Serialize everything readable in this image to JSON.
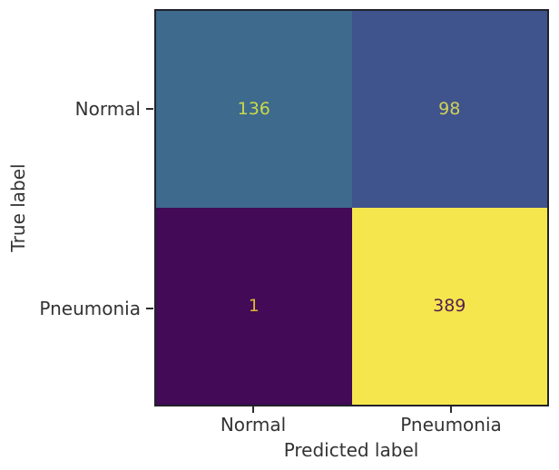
{
  "chart_data": {
    "type": "heatmap",
    "subtype": "confusion-matrix",
    "title": "",
    "xlabel": "Predicted label",
    "ylabel": "True label",
    "x_categories": [
      "Normal",
      "Pneumonia"
    ],
    "y_categories": [
      "Normal",
      "Pneumonia"
    ],
    "matrix": [
      [
        136,
        98
      ],
      [
        1,
        389
      ]
    ],
    "value_range": [
      1,
      389
    ],
    "colormap": "viridis",
    "grid": false,
    "legend": "none",
    "cell_colors": [
      [
        "#3d6a8d",
        "#3f538c"
      ],
      [
        "#420a57",
        "#f6e64d"
      ]
    ],
    "cell_text_colors": [
      [
        "#cbd84a",
        "#d0d257"
      ],
      [
        "#dcb535",
        "#572052"
      ]
    ],
    "axis_spine_color": "#22222b",
    "tick_mark_color": "#2e2e2e",
    "label_text_color": "#333333",
    "background_color": "#ffffff"
  }
}
